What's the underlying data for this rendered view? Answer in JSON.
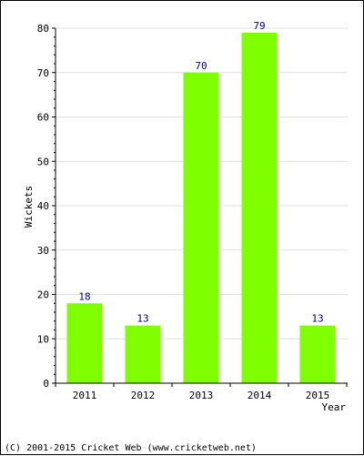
{
  "chart_data": {
    "type": "bar",
    "categories": [
      "2011",
      "2012",
      "2013",
      "2014",
      "2015"
    ],
    "values": [
      18,
      13,
      70,
      79,
      13
    ],
    "xlabel": "Year",
    "ylabel": "Wickets",
    "ylim": [
      0,
      80
    ],
    "yticks": [
      0,
      10,
      20,
      30,
      40,
      50,
      60,
      70,
      80
    ],
    "grid": true,
    "legend": "none",
    "bar_color": "#80ff00",
    "data_label_color": "#000080"
  },
  "footer": {
    "copyright": "(C) 2001-2015 Cricket Web (www.cricketweb.net)"
  }
}
